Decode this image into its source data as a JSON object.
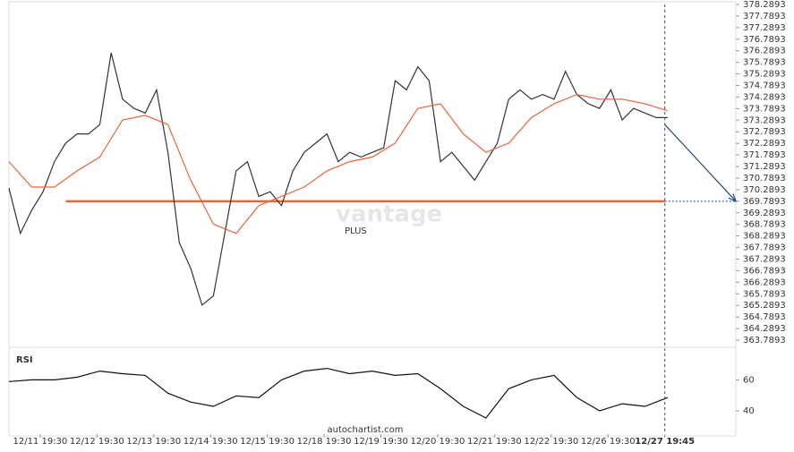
{
  "chart_data": [
    {
      "type": "line",
      "xlim": [
        0,
        128
      ],
      "ylim": [
        363.7893,
        378.2893
      ],
      "yticks": [
        363.7893,
        364.2893,
        364.7893,
        365.2893,
        365.7893,
        366.2893,
        366.7893,
        367.2893,
        367.7893,
        368.2893,
        368.7893,
        369.2893,
        369.7893,
        370.2893,
        370.7893,
        371.2893,
        371.7893,
        372.2893,
        372.7893,
        373.2893,
        373.7893,
        374.2893,
        374.7893,
        375.2893,
        375.7893,
        376.2893,
        376.7893,
        377.2893,
        377.7893,
        378.2893
      ],
      "series": [
        {
          "color": "#333333",
          "x": [
            0,
            2,
            4,
            6,
            8,
            10,
            12,
            14,
            16,
            18,
            20,
            22,
            24,
            26,
            28,
            30,
            32,
            34,
            36,
            38,
            40,
            42,
            44,
            46,
            48,
            50,
            52,
            54,
            56,
            58,
            60,
            62,
            64,
            66,
            68,
            70,
            72,
            74,
            76,
            78,
            80,
            82,
            84,
            86,
            88,
            90,
            92,
            94,
            96,
            98,
            100,
            102,
            104,
            106,
            108,
            110,
            112,
            114,
            116
          ],
          "values": [
            370.36,
            368.4,
            369.4,
            370.2,
            371.5,
            372.3,
            372.7,
            372.7,
            373.1,
            376.2,
            374.2,
            373.8,
            373.6,
            374.6,
            371.9,
            368.0,
            366.9,
            365.3,
            365.7,
            368.4,
            371.1,
            371.5,
            370.0,
            370.2,
            369.6,
            371.1,
            371.9,
            372.3,
            372.7,
            371.5,
            371.9,
            371.7,
            371.9,
            372.1,
            375.0,
            374.6,
            375.6,
            375.0,
            371.5,
            371.9,
            371.3,
            370.7,
            371.5,
            372.3,
            374.2,
            374.6,
            374.2,
            374.4,
            374.2,
            375.4,
            374.4,
            374.0,
            373.8,
            374.6,
            373.3,
            373.8,
            373.6,
            373.4,
            373.4
          ]
        },
        {
          "color": "#e8643c",
          "x": [
            0,
            4,
            8,
            12,
            16,
            20,
            24,
            28,
            32,
            36,
            40,
            44,
            48,
            52,
            56,
            60,
            64,
            68,
            72,
            76,
            80,
            84,
            88,
            92,
            96,
            100,
            104,
            108,
            112,
            116
          ],
          "values": [
            371.5,
            370.4,
            370.4,
            371.1,
            371.7,
            373.3,
            373.5,
            373.1,
            370.7,
            368.8,
            368.4,
            369.6,
            370.0,
            370.4,
            371.1,
            371.5,
            371.7,
            372.3,
            373.8,
            374.0,
            372.7,
            371.9,
            372.3,
            373.4,
            374.0,
            374.4,
            374.2,
            374.2,
            374.0,
            373.7
          ]
        }
      ],
      "level": 369.7893,
      "level_color": "#e8643c",
      "level_x": [
        10,
        115.5
      ],
      "forecast": {
        "x": [
          115.5,
          128
        ],
        "values": [
          373.1,
          369.7893
        ],
        "color": "#1f4e79"
      },
      "watermark": "vantage",
      "watermark_sub": "PLUS"
    },
    {
      "type": "line",
      "title": "RSI",
      "xlim": [
        0,
        128
      ],
      "ylim": [
        25,
        77
      ],
      "yticks": [
        40,
        60
      ],
      "xticks": [
        {
          "value": 5.5,
          "label": "12/11 19:30"
        },
        {
          "value": 15.5,
          "label": "12/12 19:30"
        },
        {
          "value": 25.5,
          "label": "12/13 19:30"
        },
        {
          "value": 35.5,
          "label": "12/14 19:30"
        },
        {
          "value": 45.5,
          "label": "12/15 19:30"
        },
        {
          "value": 55.5,
          "label": "12/18 19:30"
        },
        {
          "value": 65.5,
          "label": "12/19 19:30"
        },
        {
          "value": 75.5,
          "label": "12/20 19:30"
        },
        {
          "value": 85.5,
          "label": "12/21 19:30"
        },
        {
          "value": 95.5,
          "label": "12/22 19:30"
        },
        {
          "value": 105.5,
          "label": "12/26 19:30"
        },
        {
          "value": 115.5,
          "label": "12/27 19:45"
        }
      ],
      "series": [
        {
          "color": "#111111",
          "x": [
            0,
            4,
            8,
            12,
            16,
            20,
            24,
            28,
            32,
            36,
            40,
            44,
            48,
            52,
            56,
            60,
            64,
            68,
            72,
            76,
            80,
            84,
            88,
            92,
            96,
            100,
            104,
            108,
            112,
            116
          ],
          "values": [
            58.9,
            60,
            60,
            61.7,
            65.7,
            64,
            62.9,
            51.4,
            45.7,
            42.9,
            49.7,
            48.6,
            60,
            65.7,
            67.4,
            64,
            65.7,
            62.9,
            64,
            54.3,
            42.9,
            35.4,
            54.3,
            60,
            62.9,
            48.6,
            40,
            44.6,
            42.9,
            48.6
          ]
        }
      ],
      "source": "autochartist.com"
    }
  ]
}
